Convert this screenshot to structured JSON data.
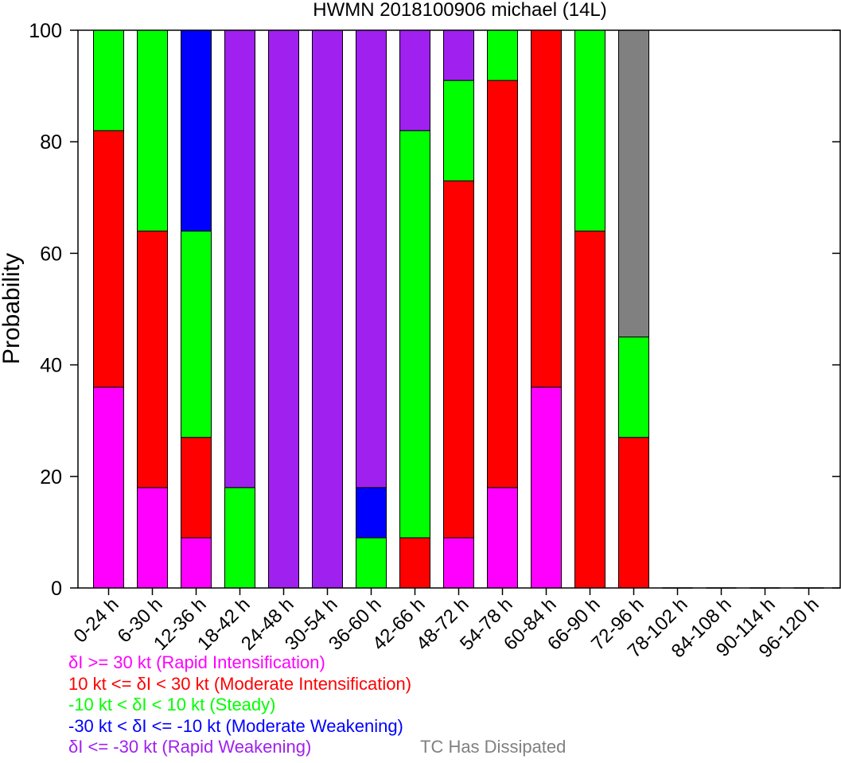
{
  "chart_data": {
    "type": "bar",
    "stacked": true,
    "title": "HWMN 2018100906 michael (14L)",
    "xlabel": "",
    "ylabel": "Probability",
    "ylim": [
      0,
      100
    ],
    "yticks": [
      0,
      20,
      40,
      60,
      80,
      100
    ],
    "grid": false,
    "categories": [
      "0-24 h",
      "6-30 h",
      "12-36 h",
      "18-42 h",
      "24-48 h",
      "30-54 h",
      "36-60 h",
      "42-66 h",
      "48-72 h",
      "54-78 h",
      "60-84 h",
      "66-90 h",
      "72-96 h",
      "78-102 h",
      "84-108 h",
      "90-114 h",
      "96-120 h"
    ],
    "series": [
      {
        "key": "ri",
        "color": "#ff00ff",
        "values": [
          36,
          18,
          9,
          0,
          0,
          0,
          0,
          0,
          9,
          18,
          36,
          0,
          0,
          0,
          0,
          0,
          0
        ]
      },
      {
        "key": "mi",
        "color": "#ff0000",
        "values": [
          46,
          46,
          18,
          0,
          0,
          0,
          0,
          9,
          64,
          73,
          64,
          64,
          27,
          0,
          0,
          0,
          0
        ]
      },
      {
        "key": "st",
        "color": "#00ff00",
        "values": [
          18,
          36,
          37,
          18,
          0,
          0,
          9,
          73,
          18,
          9,
          0,
          36,
          18,
          0,
          0,
          0,
          0
        ]
      },
      {
        "key": "mw",
        "color": "#0000ff",
        "values": [
          0,
          0,
          36,
          0,
          0,
          0,
          9,
          0,
          0,
          0,
          0,
          0,
          0,
          0,
          0,
          0,
          0
        ]
      },
      {
        "key": "rw",
        "color": "#a020f0",
        "values": [
          0,
          0,
          0,
          82,
          100,
          100,
          82,
          18,
          9,
          0,
          0,
          0,
          0,
          0,
          0,
          0,
          0
        ]
      },
      {
        "key": "td",
        "color": "#808080",
        "values": [
          0,
          0,
          0,
          0,
          0,
          0,
          0,
          0,
          0,
          0,
          0,
          0,
          55,
          0,
          0,
          0,
          0
        ]
      }
    ],
    "legend": [
      {
        "text": "δI >= 30 kt (Rapid Intensification)",
        "color": "#ff00ff"
      },
      {
        "text": "10 kt <= δI < 30 kt (Moderate Intensification)",
        "color": "#ff0000"
      },
      {
        "text": "-10 kt < δI < 10 kt (Steady)",
        "color": "#00ff00"
      },
      {
        "text": "-30 kt < δI <= -10 kt (Moderate Weakening)",
        "color": "#0000ff"
      },
      {
        "text": "δI <= -30 kt (Rapid Weakening)",
        "color": "#a020f0"
      }
    ],
    "dissipated_label": {
      "text": "TC Has Dissipated",
      "color": "#808080"
    }
  }
}
